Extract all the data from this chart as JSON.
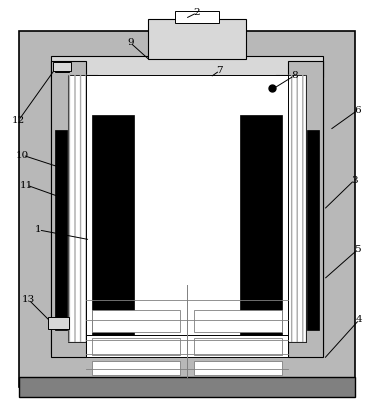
{
  "fig_width": 3.74,
  "fig_height": 4.11,
  "dpi": 100,
  "bg_color": "#ffffff",
  "gray_fill": "#b8b8b8",
  "light_gray": "#d8d8d8",
  "dark_gray": "#808080",
  "black": "#000000",
  "white": "#ffffff"
}
